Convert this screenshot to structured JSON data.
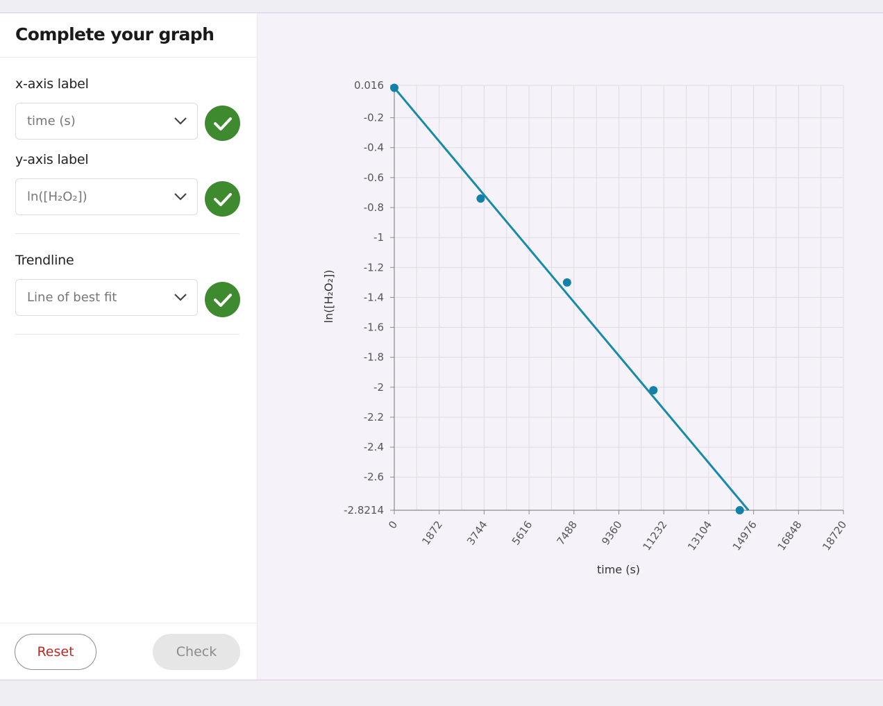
{
  "panel": {
    "title": "Complete your graph",
    "x_label_field": {
      "label": "x-axis label",
      "value": "time (s)"
    },
    "y_label_field": {
      "label": "y-axis label",
      "value": "ln([H₂O₂])"
    },
    "trendline_field": {
      "label": "Trendline",
      "value": "Line of best fit"
    },
    "reset_label": "Reset",
    "check_label": "Check"
  },
  "icons": {
    "select_arrow": "chevron-down-icon",
    "status": "check-icon"
  },
  "colors": {
    "line": "#168aa8",
    "point": "#1280a8",
    "success": "#3e8a2e",
    "reset_text": "#c0271e"
  },
  "chart_data": {
    "type": "scatter",
    "xlabel": "time (s)",
    "ylabel": "ln([H₂O₂])",
    "xlim": [
      0,
      18720
    ],
    "ylim": [
      -2.8214,
      0.016
    ],
    "x_ticks": [
      0,
      1872,
      3744,
      5616,
      7488,
      9360,
      11232,
      13104,
      14976,
      16848,
      18720
    ],
    "y_ticks": [
      0.016,
      -0.2,
      -0.4,
      -0.6,
      -0.8,
      -1,
      -1.2,
      -1.4,
      -1.6,
      -1.8,
      -2,
      -2.2,
      -2.4,
      -2.6,
      -2.8214
    ],
    "x_minor_step": 936,
    "points": [
      {
        "x": 0,
        "y": 0
      },
      {
        "x": 3600,
        "y": -0.74
      },
      {
        "x": 7200,
        "y": -1.3
      },
      {
        "x": 10800,
        "y": -2.02
      },
      {
        "x": 14400,
        "y": -2.8214
      }
    ],
    "trendline": {
      "x1": 0,
      "y1": 0,
      "x2": 14760,
      "y2": -2.8214
    },
    "grid": true
  }
}
